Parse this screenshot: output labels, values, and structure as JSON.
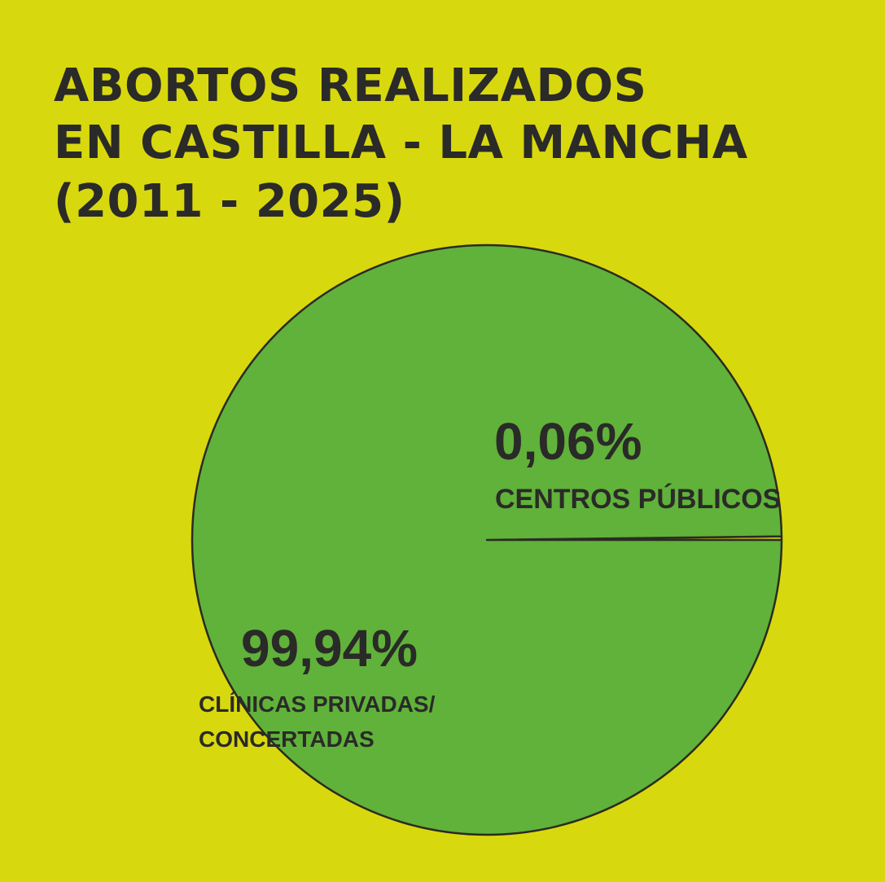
{
  "colors": {
    "background": "#d8d80e",
    "text": "#2a2a28",
    "large_slice": "#60b23a",
    "small_slice": "#d8d80e",
    "stroke": "#2b2b22"
  },
  "chart_data": {
    "type": "pie",
    "title_lines": [
      "ABORTOS REALIZADOS",
      "EN CASTILLA - LA MANCHA",
      "(2011 - 2025)"
    ],
    "slices": [
      {
        "label_lines": [
          "CENTROS PÚBLICOS"
        ],
        "value": 0.06,
        "value_label": "0,06%",
        "color": "#d8d80e"
      },
      {
        "label_lines": [
          "CLÍNICAS PRIVADAS/",
          "CONCERTADAS"
        ],
        "value": 99.94,
        "value_label": "99,94%",
        "color": "#60b23a"
      }
    ],
    "legend": "none"
  }
}
